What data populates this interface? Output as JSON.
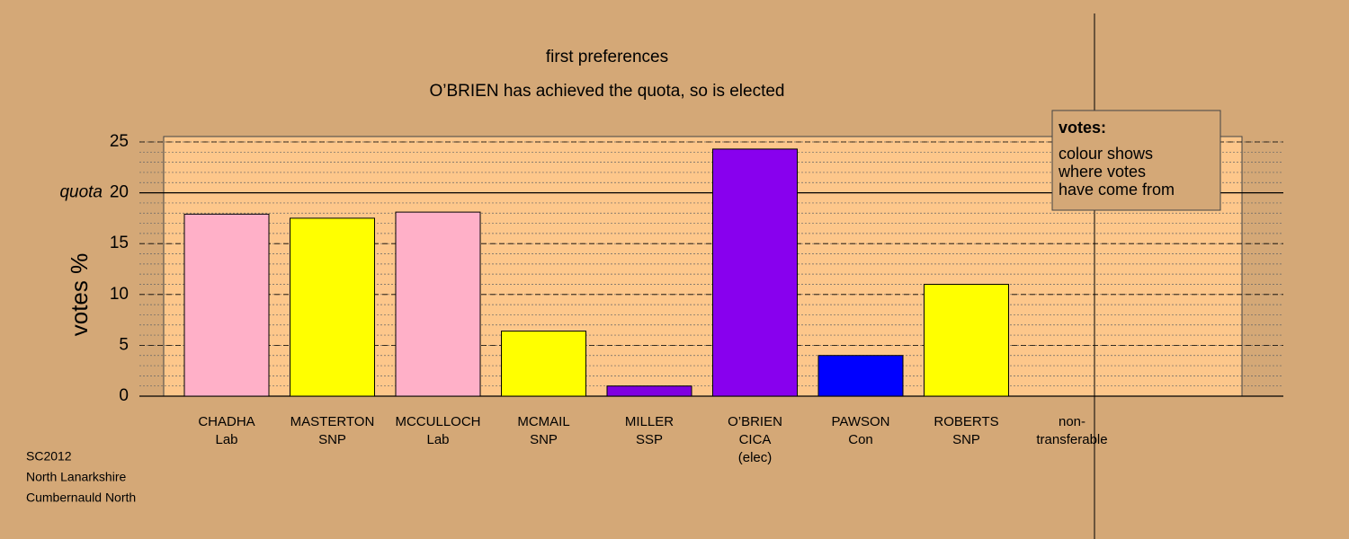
{
  "chart_data": {
    "type": "bar",
    "title": "first preferences",
    "subtitle": "O’BRIEN has achieved the quota, so is elected",
    "y_label": "votes %",
    "categories": [
      [
        "CHADHA",
        "Lab"
      ],
      [
        "MASTERTON",
        "SNP"
      ],
      [
        "MCCULLOCH",
        "Lab"
      ],
      [
        "MCMAIL",
        "SNP"
      ],
      [
        "MILLER",
        "SSP"
      ],
      [
        "O’BRIEN",
        "CICA",
        "(elec)"
      ],
      [
        "PAWSON",
        "Con"
      ],
      [
        "ROBERTS",
        "SNP"
      ],
      [
        "non-",
        "transferable"
      ]
    ],
    "values": [
      17.9,
      17.5,
      18.1,
      6.4,
      1.0,
      24.3,
      4.0,
      11.0,
      null
    ],
    "colors": [
      "#ffb0c8",
      "#ffff00",
      "#ffb0c8",
      "#ffff00",
      "#8000e0",
      "#8800ee",
      "#0000ff",
      "#ffff00",
      null
    ],
    "ylim": [
      0,
      25.5
    ],
    "yticks": [
      0,
      5,
      10,
      15,
      20,
      25
    ],
    "minor_grid_step": 1,
    "quota": {
      "value": 20,
      "label": "quota"
    },
    "legend": {
      "title": "votes:",
      "lines": [
        "colour shows",
        "where votes",
        "have come from"
      ]
    },
    "footnote": [
      "SC2012",
      "North Lanarkshire",
      "Cumbernauld North"
    ]
  }
}
